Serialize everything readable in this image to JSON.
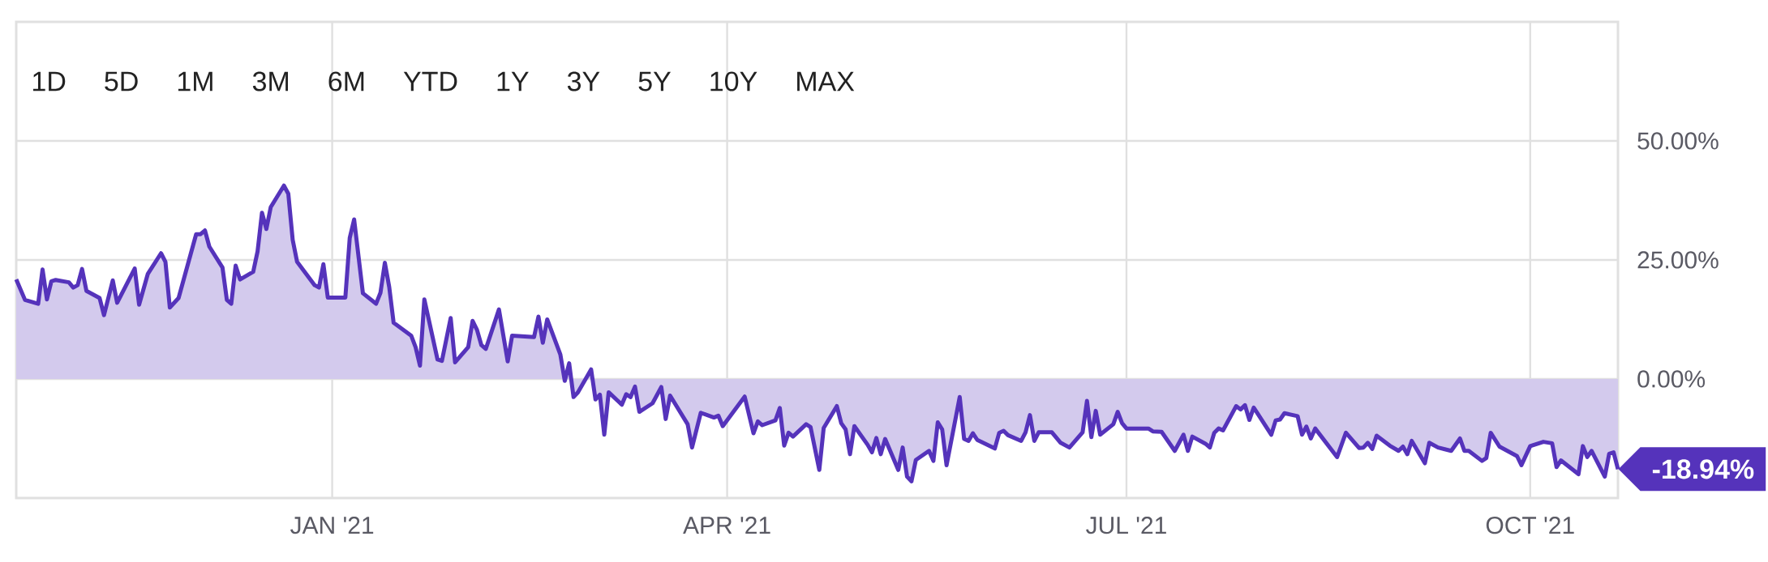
{
  "chart_data": {
    "type": "area",
    "color": "#5533bb",
    "x": [
      "2020-10-21",
      "2020-10-23",
      "2020-10-26",
      "2020-10-27",
      "2020-10-28",
      "2020-10-29",
      "2020-10-30",
      "2020-11-02",
      "2020-11-03",
      "2020-11-04",
      "2020-11-05",
      "2020-11-06",
      "2020-11-09",
      "2020-11-10",
      "2020-11-12",
      "2020-11-13",
      "2020-11-17",
      "2020-11-18",
      "2020-11-20",
      "2020-11-23",
      "2020-11-24",
      "2020-11-25",
      "2020-11-27",
      "2020-12-01",
      "2020-12-02",
      "2020-12-03",
      "2020-12-04",
      "2020-12-07",
      "2020-12-08",
      "2020-12-09",
      "2020-12-10",
      "2020-12-11",
      "2020-12-14",
      "2020-12-15",
      "2020-12-16",
      "2020-12-17",
      "2020-12-18",
      "2020-12-21",
      "2020-12-22",
      "2020-12-23",
      "2020-12-24",
      "2020-12-28",
      "2020-12-29",
      "2020-12-30",
      "2020-12-31",
      "2021-01-04",
      "2021-01-05",
      "2021-01-06",
      "2021-01-08",
      "2021-01-11",
      "2021-01-12",
      "2021-01-13",
      "2021-01-14",
      "2021-01-15",
      "2021-01-19",
      "2021-01-20",
      "2021-01-21",
      "2021-01-22",
      "2021-01-25",
      "2021-01-26",
      "2021-01-28",
      "2021-01-29",
      "2021-02-01",
      "2021-02-02",
      "2021-02-03",
      "2021-02-04",
      "2021-02-05",
      "2021-02-08",
      "2021-02-10",
      "2021-02-11",
      "2021-02-16",
      "2021-02-17",
      "2021-02-18",
      "2021-02-19",
      "2021-02-22",
      "2021-02-23",
      "2021-02-24",
      "2021-02-25",
      "2021-02-26",
      "2021-03-01",
      "2021-03-02",
      "2021-03-03",
      "2021-03-04",
      "2021-03-05",
      "2021-03-08",
      "2021-03-09",
      "2021-03-10",
      "2021-03-11",
      "2021-03-12",
      "2021-03-15",
      "2021-03-17",
      "2021-03-18",
      "2021-03-19",
      "2021-03-23",
      "2021-03-24",
      "2021-03-26",
      "2021-03-29",
      "2021-03-30",
      "2021-03-31",
      "2021-04-05",
      "2021-04-07",
      "2021-04-08",
      "2021-04-09",
      "2021-04-12",
      "2021-04-13",
      "2021-04-14",
      "2021-04-15",
      "2021-04-16",
      "2021-04-19",
      "2021-04-20",
      "2021-04-22",
      "2021-04-23",
      "2021-04-26",
      "2021-04-27",
      "2021-04-28",
      "2021-04-29",
      "2021-04-30",
      "2021-05-03",
      "2021-05-04",
      "2021-05-05",
      "2021-05-06",
      "2021-05-07",
      "2021-05-10",
      "2021-05-11",
      "2021-05-12",
      "2021-05-13",
      "2021-05-14",
      "2021-05-17",
      "2021-05-18",
      "2021-05-19",
      "2021-05-20",
      "2021-05-21",
      "2021-05-24",
      "2021-05-25",
      "2021-05-26",
      "2021-05-27",
      "2021-05-28",
      "2021-06-01",
      "2021-06-02",
      "2021-06-03",
      "2021-06-04",
      "2021-06-07",
      "2021-06-08",
      "2021-06-09",
      "2021-06-10",
      "2021-06-11",
      "2021-06-14",
      "2021-06-16",
      "2021-06-18",
      "2021-06-21",
      "2021-06-22",
      "2021-06-23",
      "2021-06-24",
      "2021-06-25",
      "2021-06-28",
      "2021-06-29",
      "2021-06-30",
      "2021-07-01",
      "2021-07-06",
      "2021-07-07",
      "2021-07-09",
      "2021-07-12",
      "2021-07-14",
      "2021-07-15",
      "2021-07-16",
      "2021-07-19",
      "2021-07-20",
      "2021-07-21",
      "2021-07-22",
      "2021-07-23",
      "2021-07-26",
      "2021-07-27",
      "2021-07-28",
      "2021-07-29",
      "2021-07-30",
      "2021-08-03",
      "2021-08-04",
      "2021-08-05",
      "2021-08-06",
      "2021-08-09",
      "2021-08-10",
      "2021-08-11",
      "2021-08-12",
      "2021-08-13",
      "2021-08-18",
      "2021-08-20",
      "2021-08-23",
      "2021-08-24",
      "2021-08-25",
      "2021-08-26",
      "2021-08-27",
      "2021-08-30",
      "2021-09-01",
      "2021-09-02",
      "2021-09-03",
      "2021-09-04",
      "2021-09-07",
      "2021-09-08",
      "2021-09-10",
      "2021-09-13",
      "2021-09-15",
      "2021-09-16",
      "2021-09-17",
      "2021-09-20",
      "2021-09-21",
      "2021-09-22",
      "2021-09-24",
      "2021-09-28",
      "2021-09-29",
      "2021-10-01",
      "2021-10-04",
      "2021-10-06",
      "2021-10-07",
      "2021-10-08",
      "2021-10-12",
      "2021-10-13",
      "2021-10-14",
      "2021-10-15",
      "2021-10-18",
      "2021-10-19",
      "2021-10-20",
      "2021-10-21"
    ],
    "values": [
      20.9,
      16.6,
      15.8,
      23.0,
      16.7,
      20.5,
      20.8,
      20.3,
      19.2,
      19.7,
      23.1,
      18.5,
      17.0,
      13.4,
      20.7,
      16.0,
      23.2,
      15.6,
      22.1,
      26.4,
      24.6,
      15.0,
      17.0,
      30.4,
      30.4,
      31.2,
      27.8,
      23.4,
      16.6,
      15.8,
      23.8,
      20.9,
      22.5,
      26.8,
      34.9,
      31.5,
      36.1,
      40.6,
      38.9,
      29.2,
      24.6,
      19.7,
      19.2,
      24.1,
      17.1,
      17.1,
      29.6,
      33.5,
      18.0,
      15.8,
      18.1,
      24.4,
      19.3,
      11.8,
      9.1,
      6.7,
      2.8,
      16.7,
      4.1,
      3.8,
      12.8,
      3.5,
      6.7,
      12.2,
      10.3,
      7.1,
      6.3,
      14.6,
      3.7,
      9.1,
      8.8,
      13.1,
      7.6,
      12.5,
      5.1,
      -0.4,
      3.3,
      -3.8,
      -2.8,
      2.0,
      -4.3,
      -3.3,
      -11.7,
      -2.8,
      -5.4,
      -3.2,
      -3.8,
      -1.6,
      -6.9,
      -5.1,
      -1.7,
      -8.4,
      -3.5,
      -9.5,
      -14.4,
      -7.1,
      -8.1,
      -7.7,
      -9.9,
      -3.7,
      -11.4,
      -8.9,
      -9.7,
      -8.7,
      -6.1,
      -14.0,
      -11.3,
      -12.1,
      -9.5,
      -10.1,
      -19.1,
      -10.3,
      -5.7,
      -9.3,
      -10.6,
      -15.8,
      -9.9,
      -13.8,
      -15.4,
      -12.4,
      -15.8,
      -12.6,
      -19.1,
      -14.4,
      -20.5,
      -21.5,
      -17.0,
      -15.1,
      -17.2,
      -9.1,
      -10.6,
      -18.1,
      -3.8,
      -12.6,
      -13.0,
      -11.4,
      -12.8,
      -14.6,
      -11.3,
      -10.9,
      -11.8,
      -13.0,
      -11.2,
      -7.6,
      -13.0,
      -11.2,
      -11.2,
      -13.4,
      -14.4,
      -11.2,
      -4.6,
      -12.2,
      -6.7,
      -11.7,
      -9.5,
      -6.9,
      -9.3,
      -10.4,
      -10.4,
      -11.0,
      -11.1,
      -15.1,
      -11.7,
      -15.1,
      -12.1,
      -13.6,
      -14.4,
      -11.3,
      -10.4,
      -10.8,
      -5.7,
      -6.4,
      -5.5,
      -8.6,
      -6.0,
      -11.7,
      -8.7,
      -8.5,
      -7.2,
      -7.8,
      -11.7,
      -10.0,
      -12.5,
      -10.4,
      -16.4,
      -11.3,
      -14.5,
      -14.4,
      -13.4,
      -14.7,
      -11.9,
      -14.0,
      -15.1,
      -14.2,
      -15.8,
      -13.0,
      -17.7,
      -13.4,
      -14.4,
      -15.1,
      -12.5,
      -15.1,
      -15.1,
      -17.2,
      -16.6,
      -11.3,
      -14.2,
      -16.2,
      -18.1,
      -14.1,
      -13.2,
      -13.5,
      -18.5,
      -17.1,
      -20.0,
      -14.1,
      -16.4,
      -15.1,
      -20.5,
      -15.7,
      -15.4,
      -18.94
    ],
    "xlim": [
      "2020-10-21",
      "2021-10-21"
    ],
    "ylim": [
      -25,
      75
    ],
    "xticks": [
      {
        "value": "2021-01-01",
        "label": "JAN '21"
      },
      {
        "value": "2021-04-01",
        "label": "APR '21"
      },
      {
        "value": "2021-07-01",
        "label": "JUL '21"
      },
      {
        "value": "2021-10-01",
        "label": "OCT '21"
      }
    ],
    "yticks": [
      {
        "value": 0,
        "label": "0.00%"
      },
      {
        "value": 25,
        "label": "25.00%"
      },
      {
        "value": 50,
        "label": "50.00%"
      }
    ],
    "grid": true,
    "annotations": [
      "1D",
      "5D",
      "1M",
      "3M",
      "6M",
      "YTD",
      "1Y",
      "3Y",
      "5Y",
      "10Y",
      "MAX",
      {
        "text": "-18.94%",
        "x": "2021-10-21",
        "y": -18.94
      }
    ]
  }
}
